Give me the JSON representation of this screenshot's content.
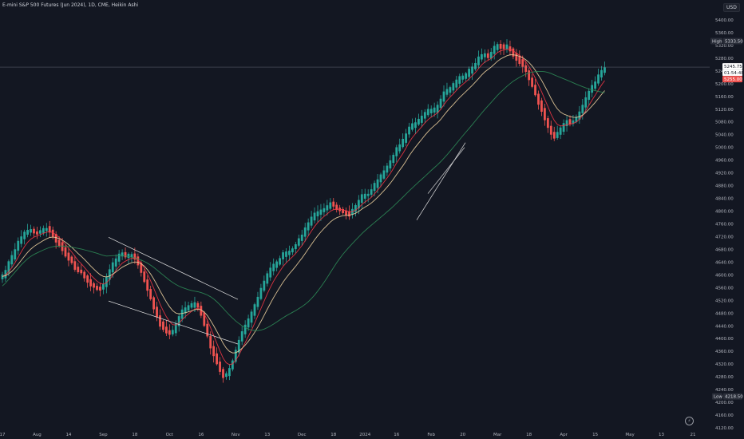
{
  "header": {
    "title": "E-mini S&P 500 Futures (Jun 2024), 1D, CME, Heikin Ashi",
    "currency": "USD"
  },
  "colors": {
    "background": "#131722",
    "bull": "#26a69a",
    "bear": "#ef5350",
    "ema_fast": "#f23645",
    "ema_mid": "#f0d3a0",
    "ema_slow": "#2e8b57",
    "trendline": "#e0e0e0",
    "text": "#b2b5be"
  },
  "price_labels": {
    "high_label": "High",
    "high_value": "5333.50",
    "low_label": "Low",
    "low_value": "4218.50",
    "last_price": "5245.75",
    "countdown": "01:54:48",
    "ema_value": "5255.00"
  },
  "icons": [
    "lightning-icon"
  ],
  "chart_data": {
    "type": "candlestick",
    "title": "E-mini S&P 500 Futures (Jun 2024), 1D, CME, Heikin Ashi",
    "y_ticks": [
      4120,
      4160,
      4200,
      4240,
      4280,
      4320,
      4360,
      4400,
      4440,
      4480,
      4520,
      4560,
      4600,
      4640,
      4680,
      4720,
      4760,
      4800,
      4840,
      4880,
      4920,
      4960,
      5000,
      5040,
      5080,
      5120,
      5160,
      5200,
      5240,
      5280,
      5320,
      5360,
      5400
    ],
    "ylim": [
      4110,
      5430
    ],
    "x_labels": [
      "17",
      "Aug",
      "14",
      "Sep",
      "18",
      "Oct",
      "16",
      "Nov",
      "13",
      "Dec",
      "18",
      "2024",
      "16",
      "Feb",
      "20",
      "Mar",
      "18",
      "Apr",
      "15",
      "May",
      "13",
      "21"
    ],
    "x_label_indices": [
      0,
      11,
      21,
      32,
      42,
      53,
      63,
      74,
      84,
      95,
      105,
      115,
      125,
      136,
      146,
      157,
      167,
      178,
      188,
      199,
      209,
      219
    ],
    "close": [
      4595,
      4612,
      4635,
      4655,
      4677,
      4698,
      4716,
      4729,
      4736,
      4737,
      4734,
      4733,
      4735,
      4741,
      4743,
      4741,
      4724,
      4709,
      4697,
      4683,
      4666,
      4652,
      4641,
      4624,
      4613,
      4610,
      4596,
      4581,
      4569,
      4565,
      4557,
      4556,
      4566,
      4585,
      4612,
      4633,
      4648,
      4659,
      4663,
      4659,
      4660,
      4662,
      4653,
      4634,
      4610,
      4584,
      4556,
      4528,
      4500,
      4471,
      4446,
      4433,
      4423,
      4416,
      4420,
      4439,
      4464,
      4485,
      4494,
      4499,
      4506,
      4509,
      4503,
      4478,
      4446,
      4410,
      4375,
      4348,
      4326,
      4299,
      4283,
      4288,
      4303,
      4328,
      4360,
      4391,
      4416,
      4436,
      4455,
      4477,
      4502,
      4528,
      4553,
      4576,
      4597,
      4614,
      4627,
      4637,
      4649,
      4664,
      4666,
      4672,
      4680,
      4693,
      4711,
      4723,
      4744,
      4761,
      4775,
      4788,
      4795,
      4800,
      4805,
      4812,
      4820,
      4818,
      4809,
      4804,
      4801,
      4793,
      4792,
      4800,
      4813,
      4831,
      4846,
      4849,
      4851,
      4864,
      4880,
      4896,
      4909,
      4924,
      4936,
      4953,
      4973,
      4994,
      5004,
      5018,
      5040,
      5061,
      5068,
      5074,
      5081,
      5093,
      5107,
      5113,
      5115,
      5117,
      5126,
      5146,
      5170,
      5180,
      5186,
      5193,
      5206,
      5216,
      5219,
      5226,
      5238,
      5249,
      5261,
      5278,
      5288,
      5291,
      5286,
      5294,
      5310,
      5321,
      5317,
      5312,
      5315,
      5307,
      5290,
      5280,
      5270,
      5256,
      5240,
      5220,
      5194,
      5167,
      5143,
      5120,
      5094,
      5070,
      5044,
      5036,
      5041,
      5055,
      5070,
      5080,
      5076,
      5081,
      5092,
      5108,
      5130,
      5154,
      5173,
      5189,
      5203,
      5221,
      5235,
      5245
    ]
  }
}
